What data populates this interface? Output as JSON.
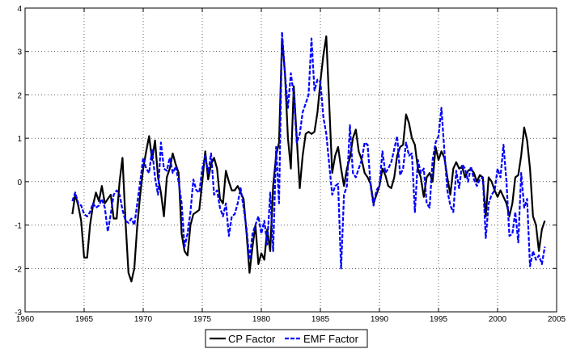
{
  "chart_data": {
    "type": "line",
    "title": "",
    "xlabel": "",
    "ylabel": "",
    "xlim": [
      1960,
      2005
    ],
    "ylim": [
      -3,
      4
    ],
    "xticks": [
      1960,
      1965,
      1970,
      1975,
      1980,
      1985,
      1990,
      1995,
      2000,
      2005
    ],
    "yticks": [
      -3,
      -2,
      -1,
      0,
      1,
      2,
      3,
      4
    ],
    "grid": true,
    "legend_position": "bottom-center",
    "series": [
      {
        "name": "CP Factor",
        "color": "#000000",
        "style": "solid",
        "x": [
          1964.0,
          1964.25,
          1964.5,
          1964.75,
          1965.0,
          1965.25,
          1965.5,
          1965.75,
          1966.0,
          1966.25,
          1966.5,
          1966.75,
          1967.0,
          1967.25,
          1967.5,
          1967.75,
          1968.0,
          1968.25,
          1968.5,
          1968.75,
          1969.0,
          1969.25,
          1969.5,
          1969.75,
          1970.0,
          1970.25,
          1970.5,
          1970.75,
          1971.0,
          1971.25,
          1971.5,
          1971.75,
          1972.0,
          1972.25,
          1972.5,
          1972.75,
          1973.0,
          1973.25,
          1973.5,
          1973.75,
          1974.0,
          1974.25,
          1974.5,
          1974.75,
          1975.0,
          1975.25,
          1975.5,
          1975.75,
          1976.0,
          1976.25,
          1976.5,
          1976.75,
          1977.0,
          1977.25,
          1977.5,
          1977.75,
          1978.0,
          1978.25,
          1978.5,
          1978.75,
          1979.0,
          1979.25,
          1979.5,
          1979.75,
          1980.0,
          1980.25,
          1980.5,
          1980.75,
          1981.0,
          1981.25,
          1981.5,
          1981.75,
          1982.0,
          1982.25,
          1982.5,
          1982.75,
          1983.0,
          1983.25,
          1983.5,
          1983.75,
          1984.0,
          1984.25,
          1984.5,
          1984.75,
          1985.0,
          1985.25,
          1985.5,
          1985.75,
          1986.0,
          1986.25,
          1986.5,
          1986.75,
          1987.0,
          1987.25,
          1987.5,
          1987.75,
          1988.0,
          1988.25,
          1988.5,
          1988.75,
          1989.0,
          1989.25,
          1989.5,
          1989.75,
          1990.0,
          1990.25,
          1990.5,
          1990.75,
          1991.0,
          1991.25,
          1991.5,
          1991.75,
          1992.0,
          1992.25,
          1992.5,
          1992.75,
          1993.0,
          1993.25,
          1993.5,
          1993.75,
          1994.0,
          1994.25,
          1994.5,
          1994.75,
          1995.0,
          1995.25,
          1995.5,
          1995.75,
          1996.0,
          1996.25,
          1996.5,
          1996.75,
          1997.0,
          1997.25,
          1997.5,
          1997.75,
          1998.0,
          1998.25,
          1998.5,
          1998.75,
          1999.0,
          1999.25,
          1999.5,
          1999.75,
          2000.0,
          2000.25,
          2000.5,
          2000.75,
          2001.0,
          2001.25,
          2001.5,
          2001.75,
          2002.0,
          2002.25,
          2002.5,
          2002.75,
          2003.0,
          2003.25,
          2003.5,
          2003.75,
          2004.0
        ],
        "y": [
          -0.75,
          -0.3,
          -0.55,
          -0.9,
          -1.75,
          -1.75,
          -1.0,
          -0.55,
          -0.25,
          -0.45,
          -0.1,
          -0.5,
          -0.4,
          -0.3,
          -0.85,
          -0.85,
          0.0,
          0.55,
          -0.9,
          -2.1,
          -2.3,
          -2.0,
          -1.0,
          -0.3,
          0.3,
          0.7,
          1.05,
          0.5,
          0.95,
          0.1,
          -0.25,
          -0.8,
          0.1,
          0.3,
          0.65,
          0.4,
          0.2,
          -1.2,
          -1.6,
          -1.7,
          -1.0,
          -0.75,
          -0.7,
          -0.65,
          0.0,
          0.7,
          0.05,
          0.4,
          0.55,
          0.3,
          -0.4,
          -0.5,
          0.25,
          0.0,
          -0.2,
          -0.2,
          -0.1,
          -0.25,
          -0.4,
          -1.2,
          -2.1,
          -1.5,
          -1.0,
          -1.9,
          -1.65,
          -1.8,
          -1.1,
          -1.6,
          -0.1,
          0.6,
          0.9,
          3.3,
          2.5,
          1.0,
          0.3,
          2.2,
          1.0,
          -0.15,
          0.6,
          1.1,
          1.15,
          1.1,
          1.15,
          1.6,
          2.3,
          2.9,
          3.35,
          1.8,
          0.2,
          0.6,
          0.8,
          0.3,
          -0.1,
          0.3,
          0.55,
          1.0,
          1.2,
          0.7,
          0.5,
          0.2,
          0.1,
          -0.05,
          -0.5,
          -0.3,
          -0.1,
          0.3,
          0.15,
          -0.1,
          -0.15,
          0.1,
          0.6,
          0.8,
          0.85,
          1.55,
          1.35,
          1.0,
          0.85,
          0.3,
          0.1,
          -0.35,
          0.1,
          0.2,
          0.0,
          0.8,
          0.5,
          0.7,
          0.55,
          0.1,
          -0.3,
          0.3,
          0.45,
          0.3,
          0.35,
          0.1,
          0.25,
          0.3,
          0.2,
          0.0,
          0.15,
          0.1,
          -0.8,
          0.1,
          0.0,
          -0.2,
          -0.35,
          -0.2,
          -0.35,
          -0.5,
          -0.8,
          -0.5,
          0.1,
          0.15,
          0.6,
          1.25,
          0.95,
          0.3,
          -0.8,
          -1.0,
          -1.6,
          -1.1,
          -0.9
        ]
      },
      {
        "name": "EMF Factor",
        "color": "#0000ff",
        "style": "dashed",
        "x": [
          1964.0,
          1964.25,
          1964.5,
          1964.75,
          1965.0,
          1965.25,
          1965.5,
          1965.75,
          1966.0,
          1966.25,
          1966.5,
          1966.75,
          1967.0,
          1967.25,
          1967.5,
          1967.75,
          1968.0,
          1968.25,
          1968.5,
          1968.75,
          1969.0,
          1969.25,
          1969.5,
          1969.75,
          1970.0,
          1970.25,
          1970.5,
          1970.75,
          1971.0,
          1971.25,
          1971.5,
          1971.75,
          1972.0,
          1972.25,
          1972.5,
          1972.75,
          1973.0,
          1973.25,
          1973.5,
          1973.75,
          1974.0,
          1974.25,
          1974.5,
          1974.75,
          1975.0,
          1975.25,
          1975.5,
          1975.75,
          1976.0,
          1976.25,
          1976.5,
          1976.75,
          1977.0,
          1977.25,
          1977.5,
          1977.75,
          1978.0,
          1978.25,
          1978.5,
          1978.75,
          1979.0,
          1979.25,
          1979.5,
          1979.75,
          1980.0,
          1980.25,
          1980.5,
          1980.75,
          1981.0,
          1981.25,
          1981.5,
          1981.75,
          1982.0,
          1982.25,
          1982.5,
          1982.75,
          1983.0,
          1983.25,
          1983.5,
          1983.75,
          1984.0,
          1984.25,
          1984.5,
          1984.75,
          1985.0,
          1985.25,
          1985.5,
          1985.75,
          1986.0,
          1986.25,
          1986.5,
          1986.75,
          1987.0,
          1987.25,
          1987.5,
          1987.75,
          1988.0,
          1988.25,
          1988.5,
          1988.75,
          1989.0,
          1989.25,
          1989.5,
          1989.75,
          1990.0,
          1990.25,
          1990.5,
          1990.75,
          1991.0,
          1991.25,
          1991.5,
          1991.75,
          1992.0,
          1992.25,
          1992.5,
          1992.75,
          1993.0,
          1993.25,
          1993.5,
          1993.75,
          1994.0,
          1994.25,
          1994.5,
          1994.75,
          1995.0,
          1995.25,
          1995.5,
          1995.75,
          1996.0,
          1996.25,
          1996.5,
          1996.75,
          1997.0,
          1997.25,
          1997.5,
          1997.75,
          1998.0,
          1998.25,
          1998.5,
          1998.75,
          1999.0,
          1999.25,
          1999.5,
          1999.75,
          2000.0,
          2000.25,
          2000.5,
          2000.75,
          2001.0,
          2001.25,
          2001.5,
          2001.75,
          2002.0,
          2002.25,
          2002.5,
          2002.75,
          2003.0,
          2003.25,
          2003.5,
          2003.75,
          2004.0
        ],
        "y": [
          -0.45,
          -0.25,
          -0.5,
          -0.55,
          -0.75,
          -0.8,
          -0.7,
          -0.5,
          -0.6,
          -0.55,
          -0.4,
          -0.6,
          -1.15,
          -0.75,
          -0.3,
          -0.2,
          -0.3,
          -0.65,
          -0.9,
          -0.95,
          -0.85,
          -1.0,
          -0.5,
          0.0,
          0.55,
          0.3,
          0.2,
          0.75,
          0.1,
          -0.3,
          0.9,
          0.3,
          0.25,
          0.55,
          0.2,
          0.35,
          0.0,
          -0.5,
          -1.5,
          -1.2,
          -0.7,
          0.05,
          -0.2,
          -0.25,
          0.3,
          0.6,
          0.2,
          0.65,
          -0.3,
          -0.2,
          -0.6,
          -0.8,
          -0.5,
          -1.25,
          -0.8,
          -0.75,
          -0.5,
          -0.15,
          -0.6,
          -1.1,
          -1.8,
          -1.2,
          -1.0,
          -0.8,
          -1.2,
          -0.9,
          -1.45,
          -0.25,
          -1.6,
          0.8,
          -0.5,
          3.45,
          2.5,
          1.7,
          2.5,
          2.0,
          0.9,
          1.1,
          1.6,
          1.8,
          2.0,
          3.3,
          2.1,
          2.35,
          2.3,
          1.5,
          1.1,
          0.4,
          -0.3,
          -0.1,
          -0.05,
          -2.0,
          -0.3,
          -0.1,
          1.3,
          0.2,
          0.1,
          0.3,
          0.5,
          0.9,
          0.85,
          -0.1,
          -0.55,
          -0.2,
          -0.1,
          0.7,
          0.2,
          0.3,
          0.45,
          0.75,
          1.05,
          0.15,
          0.3,
          0.9,
          0.6,
          0.65,
          -0.7,
          0.5,
          0.2,
          0.3,
          -0.5,
          -0.6,
          0.5,
          0.9,
          1.05,
          1.7,
          0.7,
          -0.2,
          -0.55,
          -0.7,
          0.25,
          -0.15,
          0.4,
          0.3,
          0.0,
          0.35,
          0.05,
          -0.1,
          0.05,
          0.1,
          -1.3,
          -0.5,
          -0.3,
          -0.2,
          0.3,
          0.1,
          0.85,
          0.0,
          -1.25,
          -1.2,
          -0.7,
          -1.4,
          0.2,
          -0.6,
          -0.4,
          -1.95,
          -1.6,
          -1.8,
          -1.7,
          -1.9,
          -1.5
        ]
      }
    ]
  }
}
